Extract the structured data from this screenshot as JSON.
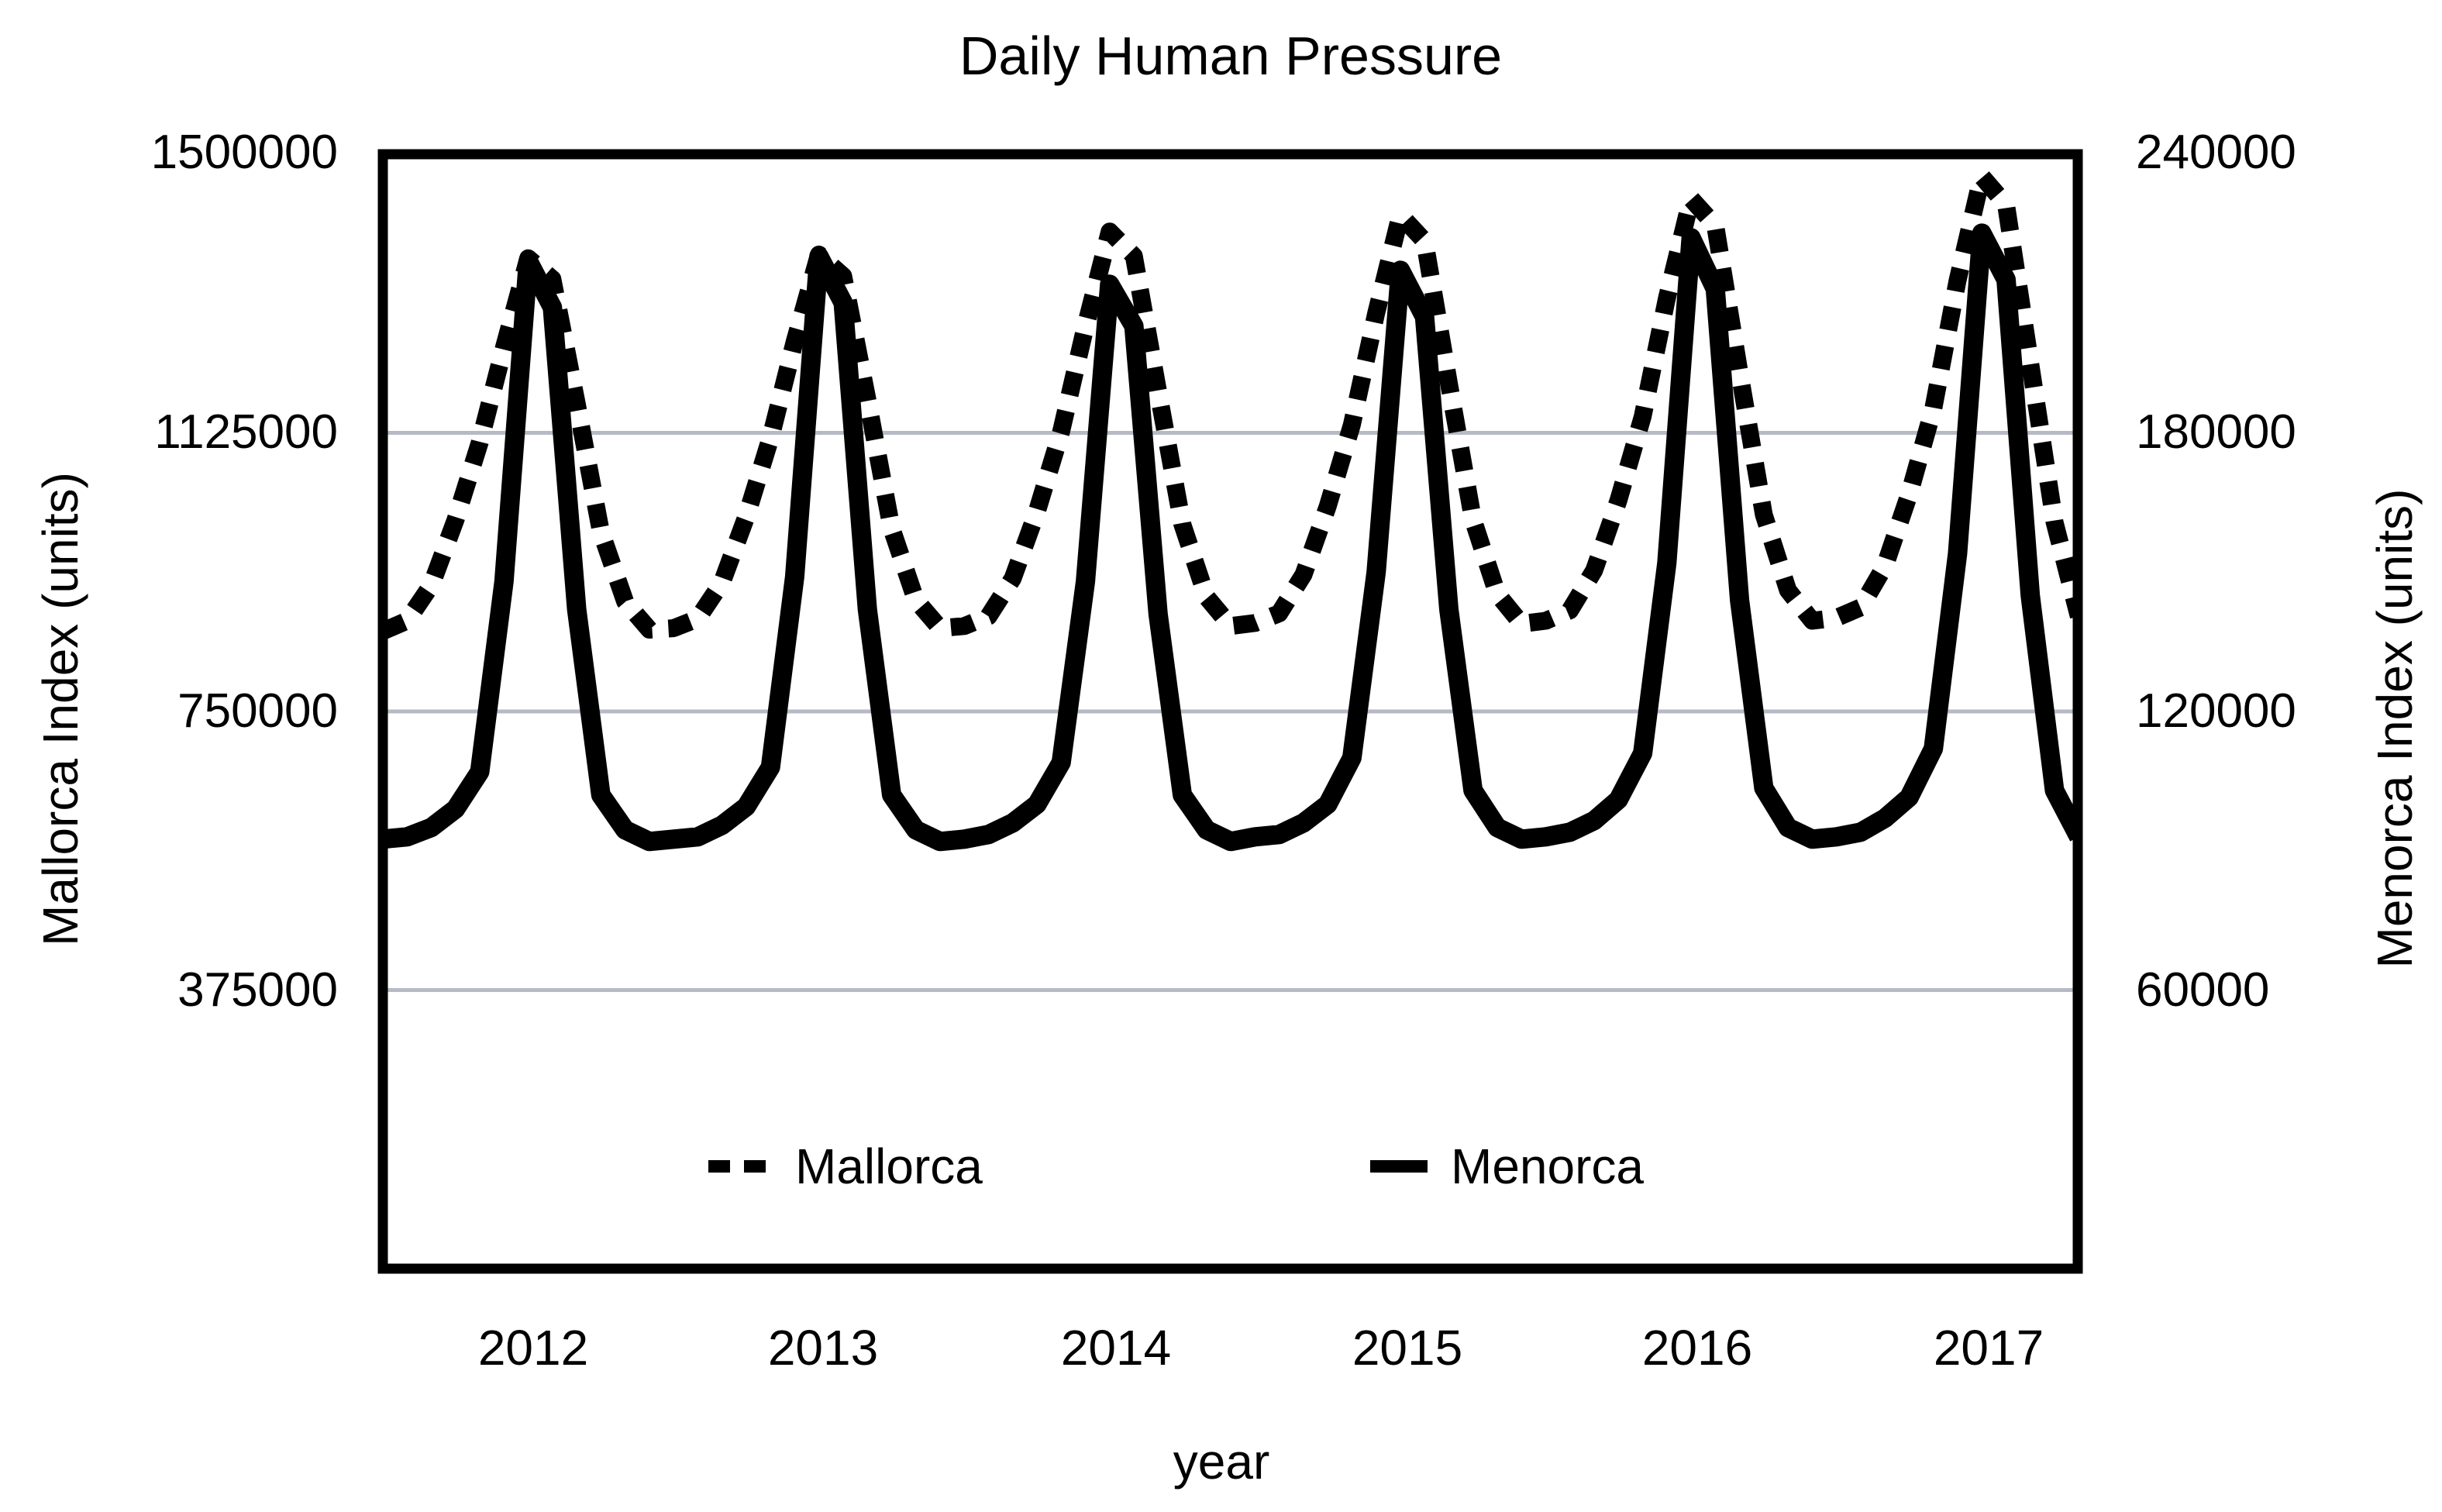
{
  "title": "Daily Human Pressure",
  "colors": {
    "line": "#000000",
    "grid": "#b6bac4",
    "background": "#ffffff"
  },
  "axes": {
    "left": {
      "label": "Mallorca Index (units)",
      "ticks": [
        "1500000",
        "1125000",
        "750000",
        "375000"
      ]
    },
    "right": {
      "label": "Menorca Index (units)",
      "ticks": [
        "240000",
        "180000",
        "120000",
        "60000"
      ]
    },
    "x": {
      "label": "year",
      "ticks": [
        "2012",
        "2013",
        "2014",
        "2015",
        "2016",
        "2017"
      ]
    }
  },
  "legend": {
    "mallorca_label": "Mallorca",
    "menorca_label": "Menorca"
  },
  "chart_data": {
    "type": "line",
    "title": "Daily Human Pressure",
    "xlabel": "year",
    "grid": "horizontal-only",
    "legend_position": "bottom-inside",
    "x_start_year": 2012,
    "x_step_months": 1,
    "x_domain": [
      2012.0,
      2017.83
    ],
    "x_tick_years": [
      2012,
      2013,
      2014,
      2015,
      2016,
      2017
    ],
    "left_axis": {
      "label": "Mallorca Index (units)",
      "range": [
        0,
        1500000
      ],
      "ticks": [
        375000,
        750000,
        1125000,
        1500000
      ]
    },
    "right_axis": {
      "label": "Menorca Index (units)",
      "range": [
        0,
        240000
      ],
      "ticks": [
        60000,
        120000,
        180000,
        240000
      ]
    },
    "series": [
      {
        "name": "Mallorca",
        "axis": "left",
        "line_style": "dashed",
        "values": [
          858000,
          872000,
          920000,
          1008000,
          1112000,
          1240000,
          1360000,
          1332000,
          1165000,
          992000,
          898000,
          860000,
          862000,
          875000,
          924000,
          1012000,
          1118000,
          1248000,
          1365000,
          1336000,
          1170000,
          996000,
          900000,
          862000,
          865000,
          878000,
          929000,
          1019000,
          1127000,
          1268000,
          1396000,
          1363000,
          1181000,
          1002000,
          904000,
          865000,
          869000,
          882000,
          934000,
          1026000,
          1136000,
          1286000,
          1418000,
          1383000,
          1192000,
          1008000,
          908000,
          868000,
          872000,
          886000,
          940000,
          1034000,
          1147000,
          1306000,
          1440000,
          1404000,
          1205000,
          1015000,
          913000,
          872000,
          876000,
          890000,
          946000,
          1042000,
          1158000,
          1330000,
          1470000,
          1432000,
          1218000,
          1005000,
          878000
        ]
      },
      {
        "name": "Menorca",
        "axis": "right",
        "line_style": "solid",
        "values": [
          92500,
          93000,
          95000,
          99000,
          107000,
          148000,
          217000,
          207000,
          142000,
          102000,
          94500,
          92000,
          92500,
          93000,
          95500,
          99500,
          108000,
          149000,
          218000,
          208000,
          142000,
          102000,
          94500,
          92000,
          92500,
          93500,
          96000,
          100000,
          109000,
          148000,
          212000,
          203000,
          141000,
          102000,
          94500,
          92000,
          93000,
          93500,
          96000,
          100000,
          110000,
          150000,
          215000,
          205000,
          142000,
          103000,
          95000,
          92500,
          93000,
          94000,
          96500,
          101000,
          111000,
          152000,
          222000,
          211000,
          144000,
          103500,
          95000,
          92500,
          93000,
          94000,
          97000,
          101500,
          112000,
          154000,
          223000,
          213000,
          145000,
          103000,
          93000
        ]
      }
    ]
  }
}
